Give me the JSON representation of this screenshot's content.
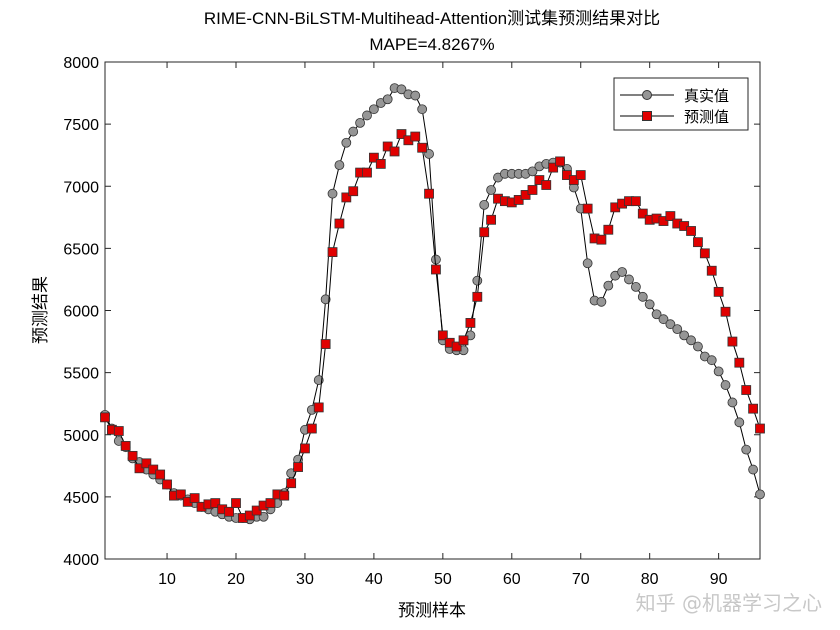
{
  "chart_data": {
    "type": "line",
    "title": "RIME-CNN-BiLSTM-Multihead-Attention测试集预测结果对比",
    "subtitle": "MAPE=4.8267%",
    "xlabel": "预测样本",
    "ylabel": "预测结果",
    "xlim": [
      1,
      96
    ],
    "ylim": [
      4000,
      8000
    ],
    "xticks": [
      10,
      20,
      30,
      40,
      50,
      60,
      70,
      80,
      90
    ],
    "yticks": [
      4000,
      4500,
      5000,
      5500,
      6000,
      6500,
      7000,
      7500,
      8000
    ],
    "grid": false,
    "legend_position": "top-right",
    "series": [
      {
        "name": "真实值",
        "marker": "circle",
        "color": "#969696",
        "values": [
          5160,
          5050,
          4950,
          4900,
          4810,
          4780,
          4720,
          4680,
          4640,
          4600,
          4530,
          4510,
          4480,
          4450,
          4420,
          4400,
          4380,
          4360,
          4340,
          4330,
          4330,
          4320,
          4340,
          4340,
          4400,
          4450,
          4530,
          4690,
          4800,
          5040,
          5200,
          5440,
          6090,
          6940,
          7170,
          7350,
          7440,
          7510,
          7570,
          7620,
          7670,
          7700,
          7790,
          7780,
          7740,
          7730,
          7620,
          7260,
          6410,
          5760,
          5690,
          5680,
          5680,
          5800,
          6240,
          6850,
          6970,
          7070,
          7100,
          7100,
          7100,
          7100,
          7120,
          7160,
          7180,
          7190,
          7190,
          7140,
          6990,
          6820,
          6380,
          6080,
          6070,
          6200,
          6280,
          6310,
          6250,
          6190,
          6110,
          6050,
          5970,
          5930,
          5890,
          5850,
          5800,
          5760,
          5710,
          5630,
          5600,
          5510,
          5400,
          5260,
          5100,
          4880,
          4720,
          4520
        ]
      },
      {
        "name": "预测值",
        "marker": "square",
        "color": "#e00000",
        "values": [
          5140,
          5040,
          5030,
          4910,
          4830,
          4730,
          4770,
          4720,
          4680,
          4600,
          4510,
          4520,
          4460,
          4490,
          4420,
          4440,
          4450,
          4400,
          4380,
          4450,
          4330,
          4350,
          4390,
          4430,
          4450,
          4520,
          4510,
          4610,
          4740,
          4890,
          5050,
          5220,
          5730,
          6470,
          6700,
          6910,
          6960,
          7110,
          7110,
          7230,
          7180,
          7320,
          7280,
          7420,
          7370,
          7400,
          7310,
          6940,
          6330,
          5800,
          5740,
          5710,
          5760,
          5900,
          6110,
          6630,
          6730,
          6900,
          6880,
          6870,
          6890,
          6930,
          6970,
          7050,
          7010,
          7150,
          7200,
          7090,
          7050,
          7090,
          6820,
          6580,
          6570,
          6650,
          6830,
          6860,
          6880,
          6880,
          6780,
          6730,
          6740,
          6720,
          6760,
          6700,
          6680,
          6640,
          6550,
          6460,
          6320,
          6150,
          5990,
          5750,
          5580,
          5360,
          5210,
          5050
        ]
      }
    ]
  },
  "watermark": "知乎 @机器学习之心"
}
